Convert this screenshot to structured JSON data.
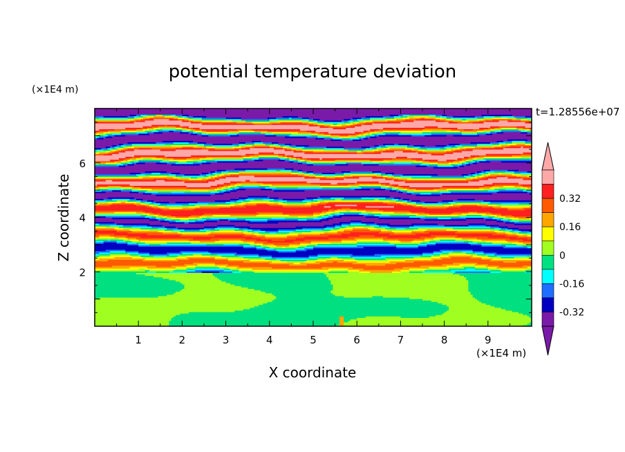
{
  "chart_data": {
    "type": "heatmap",
    "title": "potential temperature deviation",
    "xlabel": "X coordinate",
    "ylabel": "Z coordinate",
    "x_unit": "(×1E4 m)",
    "y_unit": "(×1E4 m)",
    "time_label": "t=1.28556e+07",
    "xlim": [
      0,
      10
    ],
    "ylim": [
      0,
      8
    ],
    "x_ticks": [
      1,
      2,
      3,
      4,
      5,
      6,
      7,
      8,
      9
    ],
    "y_ticks": [
      2,
      4,
      6
    ],
    "colorbar": {
      "levels": [
        -0.48,
        -0.4,
        -0.32,
        -0.24,
        -0.16,
        -0.08,
        0,
        0.08,
        0.16,
        0.24,
        0.32,
        0.4,
        0.48
      ],
      "tick_labels": [
        "0.32",
        "0.16",
        "0",
        "-0.16",
        "-0.32"
      ],
      "tick_values": [
        0.32,
        0.16,
        0,
        -0.16,
        -0.32
      ],
      "colors": [
        "#ffa8a8",
        "#ff2020",
        "#ff5a00",
        "#ffa500",
        "#ffff00",
        "#a0ff20",
        "#00e080",
        "#00ffff",
        "#1e6eff",
        "#0000c0",
        "#7a1aa8"
      ],
      "extends": "both"
    },
    "field": {
      "lower_layer_top_z": 2.0,
      "lower_layer_values": [
        0.04,
        -0.04
      ],
      "upper_layer_pattern": "horizontal stratified bands alternating between high (+0.4) and low (-0.4) values with turbulent mixing"
    }
  }
}
